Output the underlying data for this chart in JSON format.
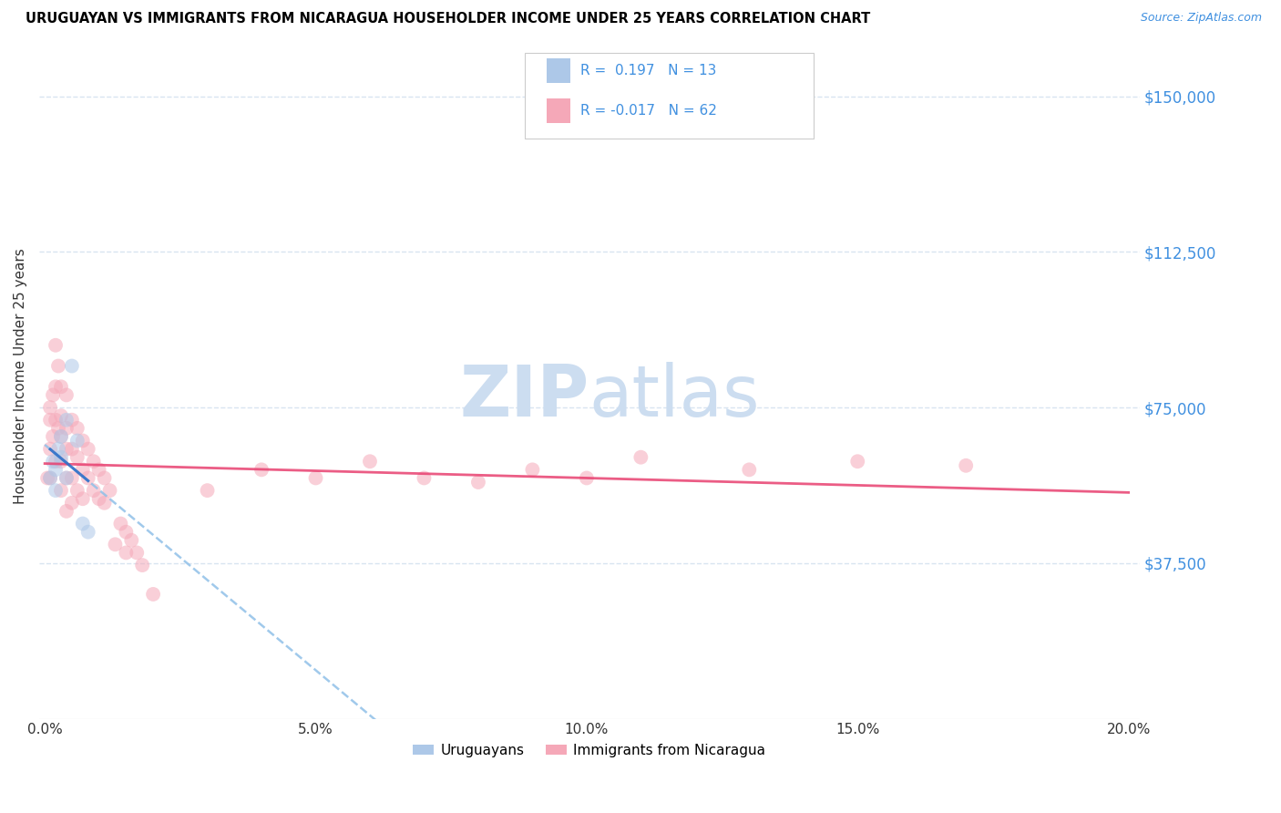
{
  "title": "URUGUAYAN VS IMMIGRANTS FROM NICARAGUA HOUSEHOLDER INCOME UNDER 25 YEARS CORRELATION CHART",
  "source": "Source: ZipAtlas.com",
  "xlabel_ticks": [
    "0.0%",
    "5.0%",
    "10.0%",
    "15.0%",
    "20.0%"
  ],
  "xlabel_values": [
    0.0,
    0.05,
    0.1,
    0.15,
    0.2
  ],
  "ylabel": "Householder Income Under 25 years",
  "ytick_labels": [
    "$37,500",
    "$75,000",
    "$112,500",
    "$150,000"
  ],
  "ytick_values": [
    37500,
    75000,
    112500,
    150000
  ],
  "ymin": 0,
  "ymax": 165000,
  "xmin": -0.001,
  "xmax": 0.202,
  "uruguayan_color": "#adc8e8",
  "nicaraguan_color": "#f5a8b8",
  "uruguayan_solid_color": "#3070c8",
  "nicaraguan_line_color": "#e84070",
  "trendline_dashed_color": "#90c0e8",
  "legend_r_color": "#4090e0",
  "watermark_color": "#ccddf0",
  "R_uruguayan": 0.197,
  "N_uruguayan": 13,
  "R_nicaraguan": -0.017,
  "N_nicaraguan": 62,
  "uruguayan_x": [
    0.001,
    0.0015,
    0.002,
    0.002,
    0.0025,
    0.003,
    0.003,
    0.004,
    0.004,
    0.005,
    0.006,
    0.007,
    0.008
  ],
  "uruguayan_y": [
    58000,
    62000,
    60000,
    55000,
    65000,
    68000,
    63000,
    72000,
    58000,
    85000,
    67000,
    47000,
    45000
  ],
  "nicaraguan_x": [
    0.0005,
    0.001,
    0.001,
    0.001,
    0.001,
    0.0015,
    0.0015,
    0.002,
    0.002,
    0.002,
    0.002,
    0.0025,
    0.0025,
    0.003,
    0.003,
    0.003,
    0.003,
    0.003,
    0.004,
    0.004,
    0.004,
    0.004,
    0.004,
    0.005,
    0.005,
    0.005,
    0.005,
    0.006,
    0.006,
    0.006,
    0.007,
    0.007,
    0.007,
    0.008,
    0.008,
    0.009,
    0.009,
    0.01,
    0.01,
    0.011,
    0.011,
    0.012,
    0.013,
    0.014,
    0.015,
    0.015,
    0.016,
    0.017,
    0.018,
    0.02,
    0.03,
    0.04,
    0.05,
    0.06,
    0.07,
    0.08,
    0.09,
    0.1,
    0.11,
    0.13,
    0.15,
    0.17
  ],
  "nicaraguan_y": [
    58000,
    75000,
    72000,
    65000,
    58000,
    78000,
    68000,
    90000,
    80000,
    72000,
    62000,
    85000,
    70000,
    80000,
    73000,
    68000,
    62000,
    55000,
    78000,
    70000,
    65000,
    58000,
    50000,
    72000,
    65000,
    58000,
    52000,
    70000,
    63000,
    55000,
    67000,
    60000,
    53000,
    65000,
    58000,
    62000,
    55000,
    60000,
    53000,
    58000,
    52000,
    55000,
    42000,
    47000,
    40000,
    45000,
    43000,
    40000,
    37000,
    30000,
    55000,
    60000,
    58000,
    62000,
    58000,
    57000,
    60000,
    58000,
    63000,
    60000,
    62000,
    61000
  ],
  "marker_size": 130,
  "alpha": 0.55,
  "grid_color": "#d8e4f0",
  "background_color": "#ffffff"
}
